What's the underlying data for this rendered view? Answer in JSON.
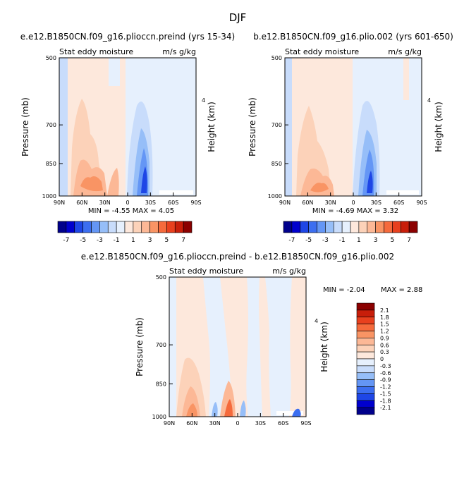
{
  "figure_title": "DJF",
  "colors": {
    "neg": [
      "#00008b",
      "#0000cd",
      "#1e46e6",
      "#3c6ef0",
      "#6496f5",
      "#96bef8",
      "#c8dcfb",
      "#e6f0fd"
    ],
    "pos": [
      "#fde8dc",
      "#fcd2b9",
      "#fcb896",
      "#f99464",
      "#f56a3c",
      "#e8401e",
      "#c81e0a",
      "#8b0000"
    ]
  },
  "chart_data": [
    {
      "type": "contour",
      "title": "e.e12.B1850CN.f09_g16.plioccn.preind (yrs 15-34)",
      "left_label": "Stat eddy moisture",
      "right_label": "m/s g/kg",
      "ylabel": "Pressure (mb)",
      "y2label": "Height (km)",
      "x_ticks": [
        "90N",
        "60N",
        "30N",
        "0",
        "30S",
        "60S",
        "90S"
      ],
      "y_ticks": [
        "500",
        "700",
        "850",
        "1000"
      ],
      "y2_ticks": [
        "4"
      ],
      "ylim": [
        1000,
        500
      ],
      "stats": "MIN = -4.55   MAX = 4.05",
      "colorbar_labels": [
        "-7",
        "-5",
        "-3",
        "-1",
        "1",
        "3",
        "5",
        "7"
      ]
    },
    {
      "type": "contour",
      "title": "b.e12.B1850CN.f09_g16.plio.002 (yrs 601-650)",
      "left_label": "Stat eddy moisture",
      "right_label": "m/s g/kg",
      "ylabel": "Pressure (mb)",
      "y2label": "Height (km)",
      "x_ticks": [
        "90N",
        "60N",
        "30N",
        "0",
        "30S",
        "60S",
        "90S"
      ],
      "y_ticks": [
        "500",
        "700",
        "850",
        "1000"
      ],
      "y2_ticks": [
        "4"
      ],
      "ylim": [
        1000,
        500
      ],
      "stats": "MIN = -4.69   MAX = 3.32",
      "colorbar_labels": [
        "-7",
        "-5",
        "-3",
        "-1",
        "1",
        "3",
        "5",
        "7"
      ]
    },
    {
      "type": "contour",
      "title": "e.e12.B1850CN.f09_g16.plioccn.preind - b.e12.B1850CN.f09_g16.plio.002",
      "left_label": "Stat eddy moisture",
      "right_label": "m/s g/kg",
      "ylabel": "Pressure (mb)",
      "y2label": "Height (km)",
      "x_ticks": [
        "90N",
        "60N",
        "30N",
        "0",
        "30S",
        "60S",
        "90S"
      ],
      "y_ticks": [
        "500",
        "700",
        "850",
        "1000"
      ],
      "y2_ticks": [
        "4"
      ],
      "ylim": [
        1000,
        500
      ],
      "stats_min": "MIN = -2.04",
      "stats_max": "MAX = 2.88",
      "colorbar_labels": [
        "2.1",
        "1.8",
        "1.5",
        "1.2",
        "0.9",
        "0.6",
        "0.3",
        "0",
        "-0.3",
        "-0.6",
        "-0.9",
        "-1.2",
        "-1.5",
        "-1.8",
        "-2.1"
      ]
    }
  ]
}
